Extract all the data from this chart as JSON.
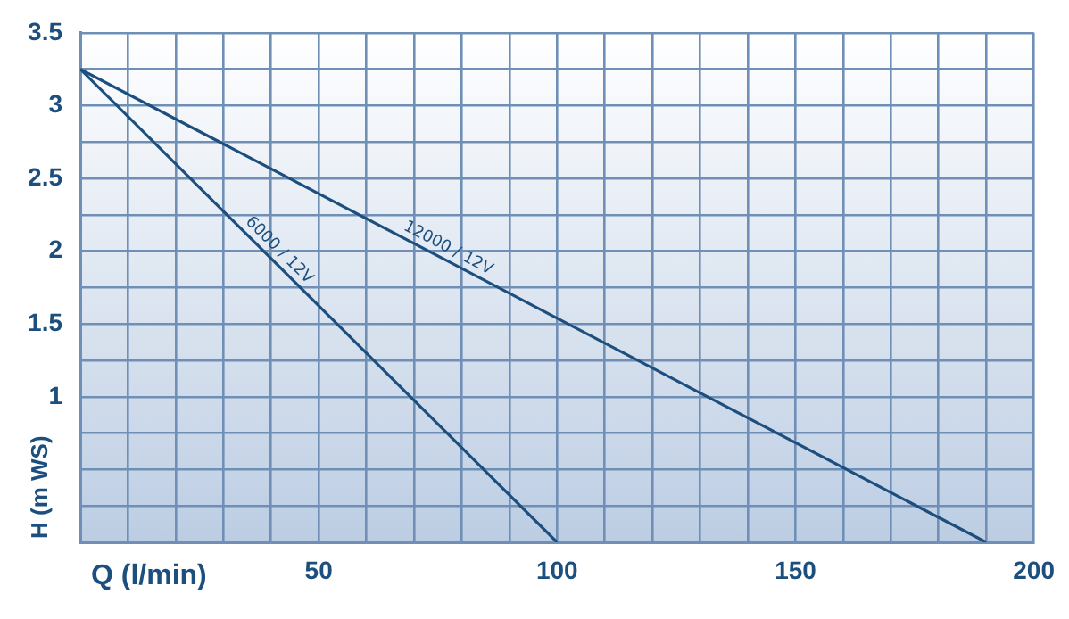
{
  "chart_data": {
    "type": "line",
    "xlabel": "Q (l/min)",
    "ylabel": "H (m WS)",
    "xlim": [
      0,
      200
    ],
    "ylim": [
      0,
      3.5
    ],
    "xticks": [
      {
        "value": 0,
        "label": null
      },
      {
        "value": 10,
        "label": null
      },
      {
        "value": 20,
        "label": null
      },
      {
        "value": 30,
        "label": null
      },
      {
        "value": 40,
        "label": null
      },
      50,
      {
        "value": 60,
        "label": null
      },
      {
        "value": 70,
        "label": null
      },
      {
        "value": 80,
        "label": null
      },
      {
        "value": 90,
        "label": null
      },
      100,
      {
        "value": 110,
        "label": null
      },
      {
        "value": 120,
        "label": null
      },
      {
        "value": 130,
        "label": null
      },
      {
        "value": 140,
        "label": null
      },
      150,
      {
        "value": 160,
        "label": null
      },
      {
        "value": 170,
        "label": null
      },
      {
        "value": 180,
        "label": null
      },
      {
        "value": 190,
        "label": null
      },
      200
    ],
    "yticks": [
      {
        "value": 0,
        "label": null
      },
      {
        "value": 0.25,
        "label": null
      },
      {
        "value": 0.5,
        "label": null
      },
      {
        "value": 0.75,
        "label": null
      },
      1,
      {
        "value": 1.25,
        "label": null
      },
      1.5,
      {
        "value": 1.75,
        "label": null
      },
      2,
      {
        "value": 2.25,
        "label": null
      },
      2.5,
      {
        "value": 2.75,
        "label": null
      },
      3,
      {
        "value": 3.25,
        "label": null
      },
      3.5
    ],
    "grid": true,
    "marker": "none",
    "line_style": "solid",
    "series": [
      {
        "name": "6000 / 12V",
        "color": "#1d4f7e",
        "x": [
          0,
          100
        ],
        "values": [
          3.25,
          0
        ]
      },
      {
        "name": "12000 / 12V",
        "color": "#1d4f7e",
        "x": [
          0,
          190
        ],
        "values": [
          3.25,
          0
        ]
      }
    ]
  }
}
